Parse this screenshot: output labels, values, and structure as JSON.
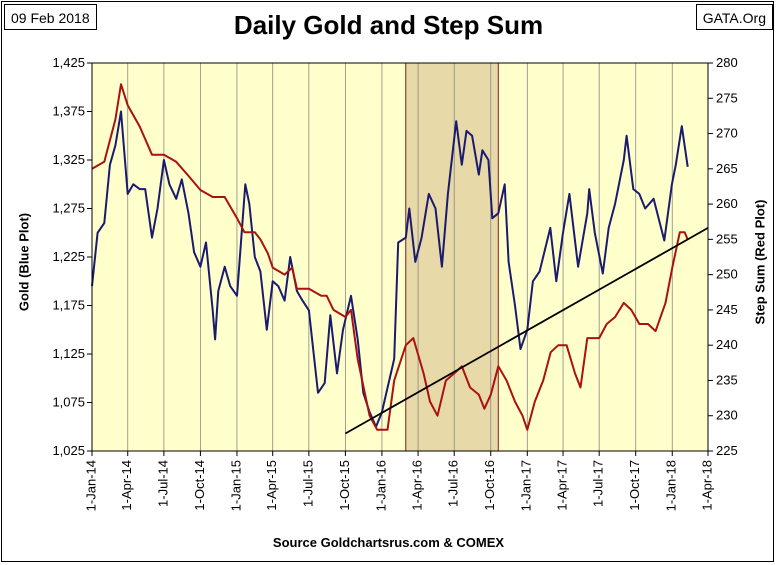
{
  "header": {
    "date": "09 Feb 2018",
    "source_site": "GATA.Org",
    "title": "Daily Gold and Step Sum",
    "footer": "Source Goldchartsrus.com & COMEX"
  },
  "colors": {
    "plot_background": "#ffffcc",
    "shaded_region": "#e8d9a8",
    "shaded_border": "#8b1a1a",
    "gold_series": "#1a1a6e",
    "step_sum_series": "#aa1111",
    "trendline": "#000000"
  },
  "chart_data": {
    "type": "line",
    "title": "Daily Gold and Step Sum",
    "y_left_label": "Gold   (Blue Plot)",
    "y_right_label": "Step Sum   (Red Plot)",
    "y_left_range": [
      1025,
      1425
    ],
    "y_left_ticks": [
      "1,025",
      "1,075",
      "1,125",
      "1,175",
      "1,225",
      "1,275",
      "1,325",
      "1,375",
      "1,425"
    ],
    "y_right_range": [
      225,
      280
    ],
    "y_right_ticks": [
      "225",
      "230",
      "235",
      "240",
      "245",
      "250",
      "255",
      "260",
      "265",
      "270",
      "275",
      "280"
    ],
    "x_range": [
      "2014-01-01",
      "2018-04-01"
    ],
    "x_ticks": [
      "1-Jan-14",
      "1-Apr-14",
      "1-Jul-14",
      "1-Oct-14",
      "1-Jan-15",
      "1-Apr-15",
      "1-Jul-15",
      "1-Oct-15",
      "1-Jan-16",
      "1-Apr-16",
      "1-Jul-16",
      "1-Oct-16",
      "1-Jan-17",
      "1-Apr-17",
      "1-Jul-17",
      "1-Oct-17",
      "1-Jan-18",
      "1-Apr-18"
    ],
    "grid": "vertical",
    "shaded_period": [
      "2016-03-01",
      "2016-10-20"
    ],
    "series": [
      {
        "name": "Gold",
        "axis": "left",
        "points": [
          [
            "2014-01-01",
            1195
          ],
          [
            "2014-01-15",
            1250
          ],
          [
            "2014-02-01",
            1260
          ],
          [
            "2014-02-15",
            1320
          ],
          [
            "2014-03-01",
            1340
          ],
          [
            "2014-03-15",
            1375
          ],
          [
            "2014-04-01",
            1290
          ],
          [
            "2014-04-15",
            1300
          ],
          [
            "2014-05-01",
            1295
          ],
          [
            "2014-05-15",
            1295
          ],
          [
            "2014-06-01",
            1245
          ],
          [
            "2014-06-15",
            1275
          ],
          [
            "2014-07-01",
            1325
          ],
          [
            "2014-07-15",
            1300
          ],
          [
            "2014-08-01",
            1285
          ],
          [
            "2014-08-15",
            1305
          ],
          [
            "2014-09-01",
            1270
          ],
          [
            "2014-09-15",
            1230
          ],
          [
            "2014-10-01",
            1215
          ],
          [
            "2014-10-15",
            1240
          ],
          [
            "2014-11-01",
            1170
          ],
          [
            "2014-11-07",
            1140
          ],
          [
            "2014-11-15",
            1190
          ],
          [
            "2014-12-01",
            1215
          ],
          [
            "2014-12-15",
            1195
          ],
          [
            "2015-01-01",
            1185
          ],
          [
            "2015-01-22",
            1300
          ],
          [
            "2015-02-01",
            1280
          ],
          [
            "2015-02-15",
            1225
          ],
          [
            "2015-03-01",
            1210
          ],
          [
            "2015-03-17",
            1150
          ],
          [
            "2015-04-01",
            1200
          ],
          [
            "2015-04-15",
            1195
          ],
          [
            "2015-05-01",
            1180
          ],
          [
            "2015-05-15",
            1225
          ],
          [
            "2015-06-01",
            1190
          ],
          [
            "2015-06-15",
            1180
          ],
          [
            "2015-07-01",
            1170
          ],
          [
            "2015-07-24",
            1085
          ],
          [
            "2015-08-10",
            1095
          ],
          [
            "2015-08-24",
            1165
          ],
          [
            "2015-09-10",
            1105
          ],
          [
            "2015-09-25",
            1150
          ],
          [
            "2015-10-15",
            1185
          ],
          [
            "2015-11-01",
            1140
          ],
          [
            "2015-11-15",
            1085
          ],
          [
            "2015-12-01",
            1065
          ],
          [
            "2015-12-17",
            1050
          ],
          [
            "2016-01-01",
            1065
          ],
          [
            "2016-01-15",
            1090
          ],
          [
            "2016-02-01",
            1120
          ],
          [
            "2016-02-11",
            1240
          ],
          [
            "2016-03-01",
            1245
          ],
          [
            "2016-03-10",
            1275
          ],
          [
            "2016-03-25",
            1220
          ],
          [
            "2016-04-10",
            1245
          ],
          [
            "2016-04-28",
            1290
          ],
          [
            "2016-05-15",
            1275
          ],
          [
            "2016-05-31",
            1215
          ],
          [
            "2016-06-15",
            1290
          ],
          [
            "2016-07-06",
            1365
          ],
          [
            "2016-07-20",
            1320
          ],
          [
            "2016-08-01",
            1355
          ],
          [
            "2016-08-15",
            1350
          ],
          [
            "2016-09-01",
            1310
          ],
          [
            "2016-09-10",
            1335
          ],
          [
            "2016-09-25",
            1325
          ],
          [
            "2016-10-05",
            1265
          ],
          [
            "2016-10-20",
            1270
          ],
          [
            "2016-11-05",
            1300
          ],
          [
            "2016-11-15",
            1220
          ],
          [
            "2016-12-01",
            1175
          ],
          [
            "2016-12-15",
            1130
          ],
          [
            "2017-01-01",
            1150
          ],
          [
            "2017-01-15",
            1200
          ],
          [
            "2017-02-01",
            1210
          ],
          [
            "2017-02-28",
            1255
          ],
          [
            "2017-03-15",
            1200
          ],
          [
            "2017-04-01",
            1250
          ],
          [
            "2017-04-17",
            1290
          ],
          [
            "2017-05-09",
            1215
          ],
          [
            "2017-06-01",
            1270
          ],
          [
            "2017-06-06",
            1295
          ],
          [
            "2017-06-20",
            1250
          ],
          [
            "2017-07-10",
            1208
          ],
          [
            "2017-07-25",
            1255
          ],
          [
            "2017-08-10",
            1280
          ],
          [
            "2017-09-01",
            1325
          ],
          [
            "2017-09-08",
            1350
          ],
          [
            "2017-09-25",
            1295
          ],
          [
            "2017-10-10",
            1290
          ],
          [
            "2017-10-25",
            1275
          ],
          [
            "2017-11-15",
            1285
          ],
          [
            "2017-12-12",
            1242
          ],
          [
            "2017-12-31",
            1300
          ],
          [
            "2018-01-10",
            1320
          ],
          [
            "2018-01-25",
            1360
          ],
          [
            "2018-02-01",
            1340
          ],
          [
            "2018-02-09",
            1318
          ]
        ]
      },
      {
        "name": "Step Sum",
        "axis": "right",
        "points": [
          [
            "2014-01-01",
            265
          ],
          [
            "2014-02-01",
            266
          ],
          [
            "2014-03-01",
            272
          ],
          [
            "2014-03-15",
            277
          ],
          [
            "2014-04-01",
            274
          ],
          [
            "2014-05-01",
            271
          ],
          [
            "2014-06-01",
            267
          ],
          [
            "2014-07-01",
            267
          ],
          [
            "2014-08-01",
            266
          ],
          [
            "2014-09-01",
            264
          ],
          [
            "2014-10-01",
            262
          ],
          [
            "2014-11-01",
            261
          ],
          [
            "2014-12-01",
            261
          ],
          [
            "2015-01-01",
            258
          ],
          [
            "2015-01-20",
            256
          ],
          [
            "2015-02-15",
            256
          ],
          [
            "2015-03-01",
            255
          ],
          [
            "2015-03-20",
            253
          ],
          [
            "2015-04-01",
            251
          ],
          [
            "2015-05-01",
            250
          ],
          [
            "2015-05-20",
            251
          ],
          [
            "2015-06-01",
            248
          ],
          [
            "2015-07-01",
            248
          ],
          [
            "2015-08-01",
            247
          ],
          [
            "2015-08-15",
            247
          ],
          [
            "2015-09-01",
            245
          ],
          [
            "2015-10-01",
            244
          ],
          [
            "2015-10-15",
            245
          ],
          [
            "2015-11-01",
            238
          ],
          [
            "2015-12-01",
            230
          ],
          [
            "2015-12-20",
            228
          ],
          [
            "2016-01-15",
            228
          ],
          [
            "2016-02-01",
            235
          ],
          [
            "2016-03-01",
            240
          ],
          [
            "2016-03-20",
            241
          ],
          [
            "2016-04-15",
            236
          ],
          [
            "2016-05-01",
            232
          ],
          [
            "2016-05-20",
            230
          ],
          [
            "2016-06-10",
            235
          ],
          [
            "2016-07-01",
            236
          ],
          [
            "2016-07-20",
            237
          ],
          [
            "2016-08-10",
            234
          ],
          [
            "2016-09-01",
            233
          ],
          [
            "2016-09-15",
            231
          ],
          [
            "2016-10-01",
            233
          ],
          [
            "2016-10-20",
            237
          ],
          [
            "2016-11-10",
            235
          ],
          [
            "2016-12-01",
            232
          ],
          [
            "2016-12-20",
            230
          ],
          [
            "2017-01-01",
            228
          ],
          [
            "2017-01-20",
            232
          ],
          [
            "2017-02-10",
            235
          ],
          [
            "2017-03-01",
            239
          ],
          [
            "2017-03-20",
            240
          ],
          [
            "2017-04-10",
            240
          ],
          [
            "2017-05-01",
            236
          ],
          [
            "2017-05-15",
            234
          ],
          [
            "2017-06-01",
            241
          ],
          [
            "2017-07-01",
            241
          ],
          [
            "2017-07-20",
            243
          ],
          [
            "2017-08-10",
            244
          ],
          [
            "2017-09-01",
            246
          ],
          [
            "2017-09-20",
            245
          ],
          [
            "2017-10-10",
            243
          ],
          [
            "2017-11-01",
            243
          ],
          [
            "2017-11-20",
            242
          ],
          [
            "2017-12-15",
            246
          ],
          [
            "2018-01-01",
            251
          ],
          [
            "2018-01-20",
            256
          ],
          [
            "2018-02-01",
            256
          ],
          [
            "2018-02-09",
            255
          ]
        ]
      },
      {
        "type": "trendline",
        "axis": "left",
        "points": [
          [
            "2015-10-01",
            1043
          ],
          [
            "2018-04-01",
            1255
          ]
        ]
      }
    ]
  }
}
